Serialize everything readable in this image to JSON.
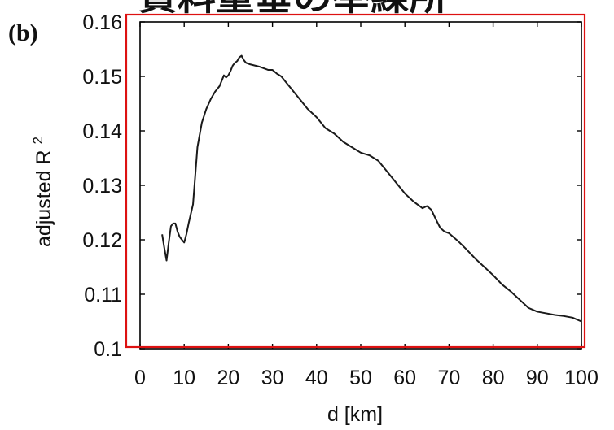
{
  "banner": {
    "text": "資料重垂の举練所"
  },
  "colors": {
    "line": "#1a1a1a",
    "axes": "#000000",
    "highlight_frame": "#dd1111",
    "text": "#111111"
  },
  "chart_data": {
    "type": "line",
    "panel_label": "(b)",
    "title": "",
    "xlabel": "d [km]",
    "ylabel": "adjusted R",
    "ylabel_superscript": "2",
    "xlim": [
      0,
      100
    ],
    "ylim": [
      0.1,
      0.16
    ],
    "x_ticks": [
      0,
      10,
      20,
      30,
      40,
      50,
      60,
      70,
      80,
      90,
      100
    ],
    "x_tick_labels": [
      "0",
      "10",
      "20",
      "30",
      "40",
      "50",
      "60",
      "70",
      "80",
      "90",
      "100"
    ],
    "y_ticks": [
      0.1,
      0.11,
      0.12,
      0.13,
      0.14,
      0.15,
      0.16
    ],
    "y_tick_labels": [
      "0.1",
      "0.11",
      "0.12",
      "0.13",
      "0.14",
      "0.15",
      "0.16"
    ],
    "grid": false,
    "series": [
      {
        "x": [
          5,
          5.5,
          6,
          6.5,
          7,
          7.5,
          8,
          8.5,
          9,
          9.5,
          10,
          10.5,
          11,
          12,
          13,
          14,
          15,
          16,
          17,
          18,
          18.5,
          19,
          19.5,
          20,
          20.5,
          21,
          21.5,
          22,
          22.5,
          23,
          23.5,
          24,
          25,
          26,
          27,
          28,
          29,
          30,
          31,
          32,
          33,
          34,
          35,
          36,
          38,
          40,
          42,
          44,
          46,
          48,
          50,
          52,
          54,
          56,
          58,
          60,
          62,
          64,
          65,
          66,
          67,
          68,
          69,
          70,
          72,
          74,
          76,
          78,
          80,
          82,
          84,
          86,
          88,
          90,
          92,
          94,
          96,
          98,
          100
        ],
        "y": [
          0.121,
          0.1185,
          0.1162,
          0.1195,
          0.1225,
          0.123,
          0.123,
          0.1215,
          0.1205,
          0.12,
          0.1195,
          0.121,
          0.123,
          0.1265,
          0.137,
          0.1415,
          0.144,
          0.1458,
          0.1472,
          0.1482,
          0.1492,
          0.1502,
          0.1498,
          0.1502,
          0.151,
          0.152,
          0.1525,
          0.1528,
          0.1535,
          0.1538,
          0.153,
          0.1525,
          0.1522,
          0.152,
          0.1518,
          0.1515,
          0.1512,
          0.1512,
          0.1505,
          0.15,
          0.149,
          0.148,
          0.147,
          0.146,
          0.144,
          0.1425,
          0.1405,
          0.1395,
          0.138,
          0.137,
          0.136,
          0.1355,
          0.1345,
          0.1325,
          0.1305,
          0.1285,
          0.127,
          0.1258,
          0.1262,
          0.1255,
          0.1238,
          0.1222,
          0.1215,
          0.1212,
          0.1198,
          0.1182,
          0.1165,
          0.115,
          0.1135,
          0.1118,
          0.1105,
          0.109,
          0.1075,
          0.1068,
          0.1065,
          0.1062,
          0.106,
          0.1057,
          0.105
        ]
      }
    ]
  }
}
